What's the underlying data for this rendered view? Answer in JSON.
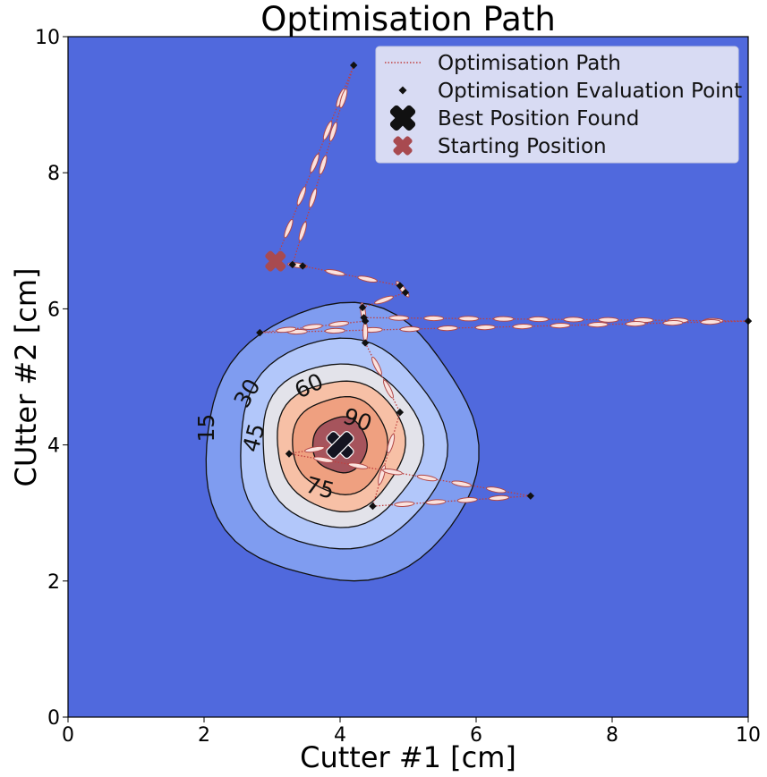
{
  "chart_data": {
    "type": "contour",
    "title": "Optimisation Path",
    "xlabel": "Cutter #1 [cm]",
    "ylabel": "CUtter #2 [cm]",
    "xlim": [
      0,
      10
    ],
    "ylim": [
      0,
      10
    ],
    "x_ticks": [
      "0",
      "2",
      "4",
      "6",
      "8",
      "10"
    ],
    "y_ticks": [
      "0",
      "2",
      "4",
      "6",
      "8",
      "10"
    ],
    "grid": false,
    "legend_position": "top-right",
    "background_color": "#5069dd",
    "contour": {
      "center": [
        4.0,
        4.0
      ],
      "levels": [
        15,
        30,
        45,
        60,
        75,
        90
      ],
      "level_labels": [
        "15",
        "30",
        "45",
        "60",
        "75",
        "90"
      ],
      "radii": [
        2.0,
        1.52,
        1.18,
        0.94,
        0.7,
        0.4
      ],
      "fill_colors": [
        "#7f9cf0",
        "#b2c7fa",
        "#e3e3ea",
        "#f7c0a6",
        "#efa080",
        "#a6545c"
      ]
    },
    "legend": [
      {
        "label": "Optimisation Path",
        "marker": "dotted-line",
        "color": "#c04040"
      },
      {
        "label": "Optimisation Evaluation Point",
        "marker": "diamond",
        "color": "#111111"
      },
      {
        "label": "Best Position Found",
        "marker": "x",
        "color": "#111111"
      },
      {
        "label": "Starting Position",
        "marker": "x",
        "color": "#a84a50"
      }
    ],
    "path": [
      [
        3.05,
        6.7
      ],
      [
        4.2,
        9.58
      ],
      [
        3.3,
        6.65
      ],
      [
        3.45,
        6.63
      ],
      [
        4.88,
        6.34
      ],
      [
        4.96,
        6.24
      ],
      [
        4.33,
        6.02
      ],
      [
        4.35,
        5.87
      ],
      [
        10.0,
        5.82
      ],
      [
        2.82,
        5.65
      ],
      [
        4.37,
        5.82
      ],
      [
        4.37,
        5.5
      ],
      [
        4.88,
        4.48
      ],
      [
        4.48,
        3.1
      ],
      [
        6.8,
        3.25
      ],
      [
        3.25,
        3.87
      ],
      [
        4.0,
        4.0
      ]
    ],
    "evaluation_points": [
      [
        4.2,
        9.58
      ],
      [
        3.3,
        6.65
      ],
      [
        3.45,
        6.63
      ],
      [
        4.88,
        6.34
      ],
      [
        4.96,
        6.24
      ],
      [
        4.33,
        6.02
      ],
      [
        4.35,
        5.87
      ],
      [
        4.37,
        5.82
      ],
      [
        2.82,
        5.65
      ],
      [
        4.37,
        5.5
      ],
      [
        10.0,
        5.82
      ],
      [
        4.88,
        4.48
      ],
      [
        3.25,
        3.87
      ],
      [
        6.8,
        3.25
      ],
      [
        4.48,
        3.1
      ]
    ],
    "best_position": [
      4.0,
      4.0
    ],
    "starting_position": [
      3.05,
      6.7
    ]
  }
}
